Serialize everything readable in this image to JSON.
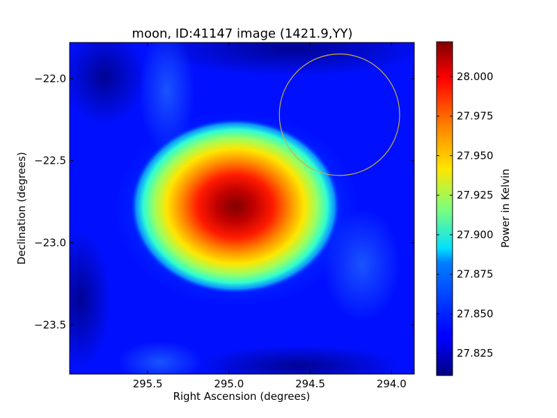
{
  "chart_data": {
    "type": "heatmap",
    "title": "moon, ID:41147 image (1421.9,YY)",
    "xlabel": "Right Ascension (degrees)",
    "ylabel": "Declination (degrees)",
    "colorbar_label": "Power in Kelvin",
    "colormap": "jet",
    "x_range": [
      295.98,
      293.86
    ],
    "y_range": [
      -23.8,
      -21.78
    ],
    "x_ticks": [
      {
        "value": 295.5,
        "label": "295.5"
      },
      {
        "value": 295.0,
        "label": "295.0"
      },
      {
        "value": 294.5,
        "label": "294.5"
      },
      {
        "value": 294.0,
        "label": "294.0"
      }
    ],
    "y_ticks": [
      {
        "value": -22.0,
        "label": "−22.0"
      },
      {
        "value": -22.5,
        "label": "−22.5"
      },
      {
        "value": -23.0,
        "label": "−23.0"
      },
      {
        "value": -23.5,
        "label": "−23.5"
      }
    ],
    "color_range": [
      27.811,
      28.022
    ],
    "color_ticks": [
      {
        "value": 27.825,
        "label": "27.825"
      },
      {
        "value": 27.85,
        "label": "27.850"
      },
      {
        "value": 27.875,
        "label": "27.875"
      },
      {
        "value": 27.9,
        "label": "27.900"
      },
      {
        "value": 27.925,
        "label": "27.925"
      },
      {
        "value": 27.95,
        "label": "27.950"
      },
      {
        "value": 27.975,
        "label": "27.975"
      },
      {
        "value": 28.0,
        "label": "28.000"
      }
    ],
    "background_level": 27.83,
    "peak": {
      "ra": 294.96,
      "dec": -22.78,
      "value": 28.02
    },
    "circle": {
      "ra_center": 294.32,
      "dec_center": -22.22,
      "radius_ra": 0.37,
      "radius_dec": 0.37,
      "color": "#c8b43c"
    },
    "grid": false
  }
}
